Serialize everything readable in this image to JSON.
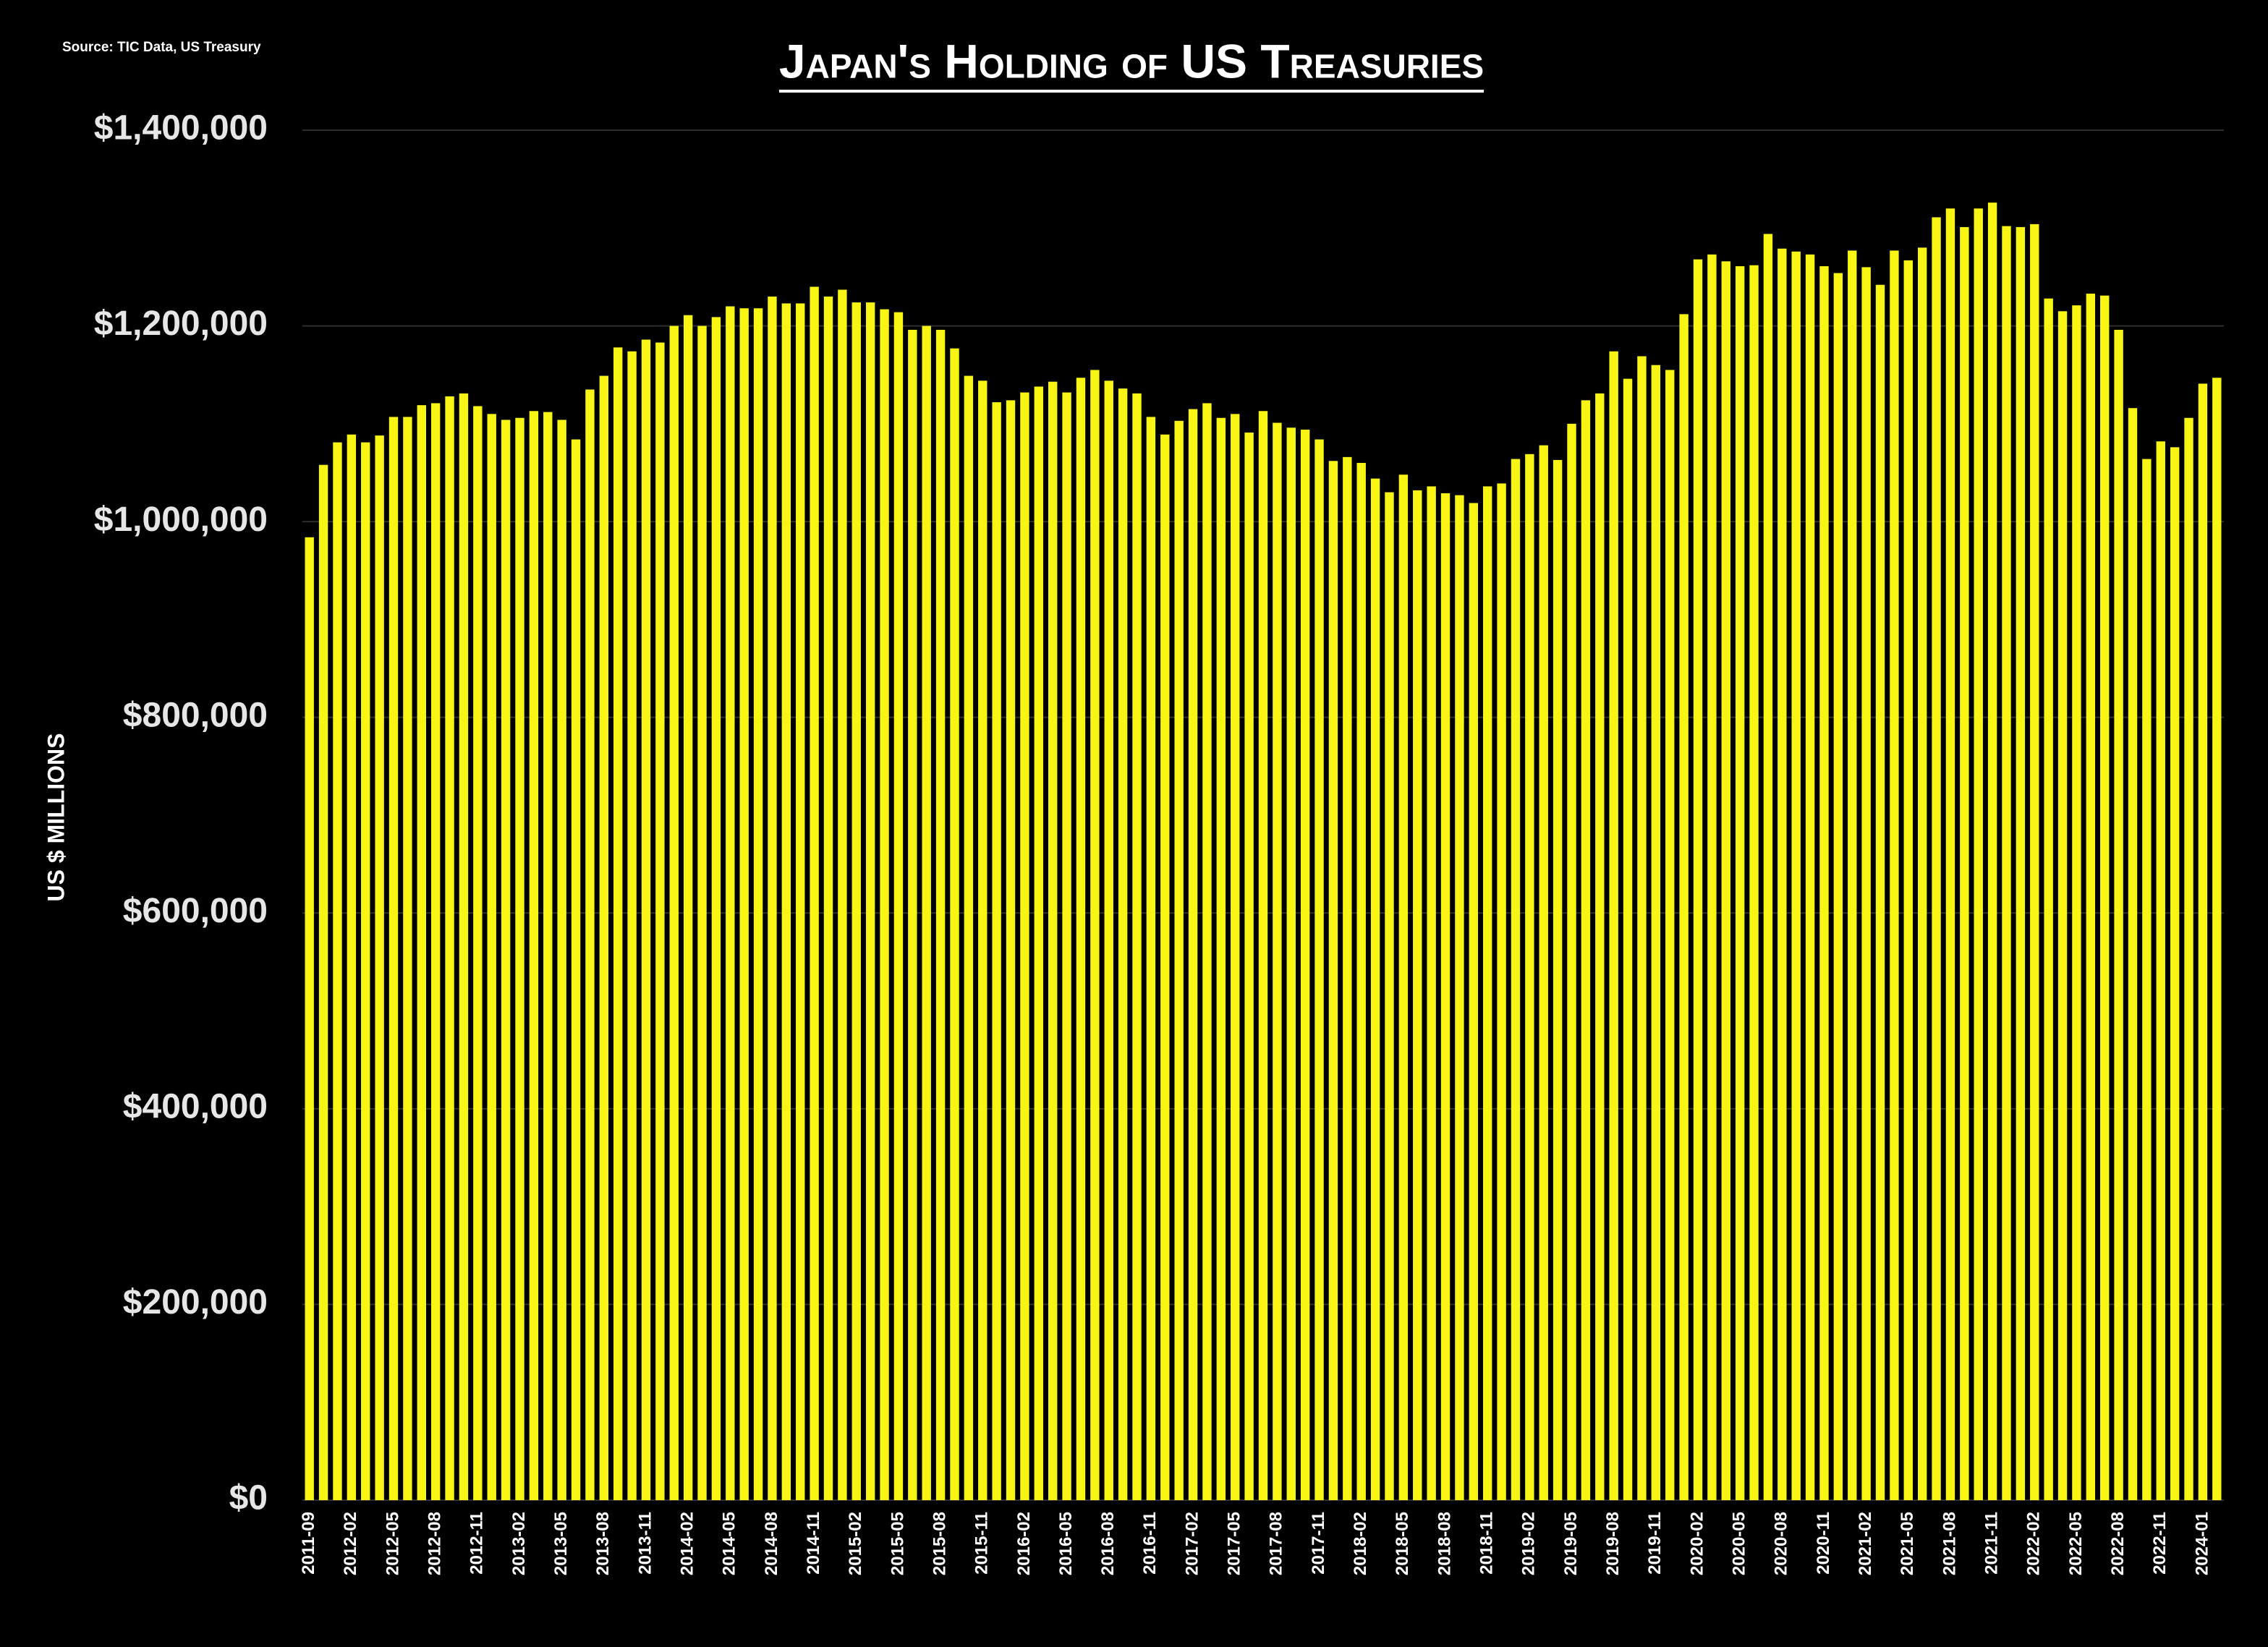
{
  "chart_data": {
    "type": "bar",
    "title": "Japan's Holding of US Treasuries",
    "source": "Source: TIC Data, US Treasury",
    "y_label": "US $ MILLIONS",
    "color": "#f8f514",
    "grid": true,
    "ylim": [
      0,
      1400000
    ],
    "yticks": [
      {
        "value": 0,
        "label": "$0"
      },
      {
        "value": 200000,
        "label": "$200,000"
      },
      {
        "value": 400000,
        "label": "$400,000"
      },
      {
        "value": 600000,
        "label": "$600,000"
      },
      {
        "value": 800000,
        "label": "$800,000"
      },
      {
        "value": 1000000,
        "label": "$1,000,000"
      },
      {
        "value": 1200000,
        "label": "$1,200,000"
      },
      {
        "value": 1400000,
        "label": "$1,400,000"
      }
    ],
    "categories": [
      "2011-09",
      null,
      null,
      "2012-02",
      null,
      null,
      "2012-05",
      null,
      null,
      "2012-08",
      null,
      null,
      "2012-11",
      null,
      null,
      "2013-02",
      null,
      null,
      "2013-05",
      null,
      null,
      "2013-08",
      null,
      null,
      "2013-11",
      null,
      null,
      "2014-02",
      null,
      null,
      "2014-05",
      null,
      null,
      "2014-08",
      null,
      null,
      "2014-11",
      null,
      null,
      "2015-02",
      null,
      null,
      "2015-05",
      null,
      null,
      "2015-08",
      null,
      null,
      "2015-11",
      null,
      null,
      "2016-02",
      null,
      null,
      "2016-05",
      null,
      null,
      "2016-08",
      null,
      null,
      "2016-11",
      null,
      null,
      "2017-02",
      null,
      null,
      "2017-05",
      null,
      null,
      "2017-08",
      null,
      null,
      "2017-11",
      null,
      null,
      "2018-02",
      null,
      null,
      "2018-05",
      null,
      null,
      "2018-08",
      null,
      null,
      "2018-11",
      null,
      null,
      "2019-02",
      null,
      null,
      "2019-05",
      null,
      null,
      "2019-08",
      null,
      null,
      "2019-11",
      null,
      null,
      "2020-02",
      null,
      null,
      "2020-05",
      null,
      null,
      "2020-08",
      null,
      null,
      "2020-11",
      null,
      null,
      "2021-02",
      null,
      null,
      "2021-05",
      null,
      null,
      "2021-08",
      null,
      null,
      "2021-11",
      null,
      null,
      "2022-02",
      null,
      null,
      "2022-05",
      null,
      null,
      "2022-08",
      null,
      null,
      "2022-11",
      null,
      null,
      "2024-01",
      null
    ],
    "values": [
      984000,
      1058000,
      1081000,
      1089000,
      1081000,
      1088000,
      1107000,
      1107000,
      1119000,
      1121000,
      1128000,
      1131000,
      1118000,
      1110000,
      1104000,
      1106000,
      1113000,
      1112000,
      1104000,
      1084000,
      1135000,
      1149000,
      1178000,
      1174000,
      1186000,
      1183000,
      1200000,
      1211000,
      1200000,
      1209000,
      1220000,
      1218000,
      1218000,
      1230000,
      1223000,
      1223000,
      1240000,
      1230000,
      1237000,
      1224000,
      1224000,
      1217000,
      1214000,
      1196000,
      1200000,
      1196000,
      1177000,
      1149000,
      1144000,
      1122000,
      1124000,
      1132000,
      1138000,
      1143000,
      1132000,
      1147000,
      1155000,
      1144000,
      1136000,
      1131000,
      1107000,
      1089000,
      1103000,
      1115000,
      1121000,
      1106000,
      1110000,
      1091000,
      1113000,
      1101000,
      1096000,
      1094000,
      1084000,
      1062000,
      1066000,
      1060000,
      1044000,
      1030000,
      1048000,
      1032000,
      1036000,
      1029000,
      1027000,
      1019000,
      1036000,
      1039000,
      1064000,
      1069000,
      1078000,
      1063000,
      1100000,
      1124000,
      1131000,
      1174000,
      1146000,
      1169000,
      1160000,
      1155000,
      1212000,
      1268000,
      1273000,
      1266000,
      1261000,
      1262000,
      1294000,
      1279000,
      1276000,
      1273000,
      1261000,
      1254000,
      1277000,
      1260000,
      1242000,
      1277000,
      1267000,
      1280000,
      1311000,
      1320000,
      1301000,
      1320000,
      1326000,
      1302000,
      1301000,
      1304000,
      1228000,
      1215000,
      1221000,
      1233000,
      1231000,
      1196000,
      1116000,
      1064000,
      1082000,
      1076000,
      1106000,
      1141000,
      1147000
    ]
  }
}
